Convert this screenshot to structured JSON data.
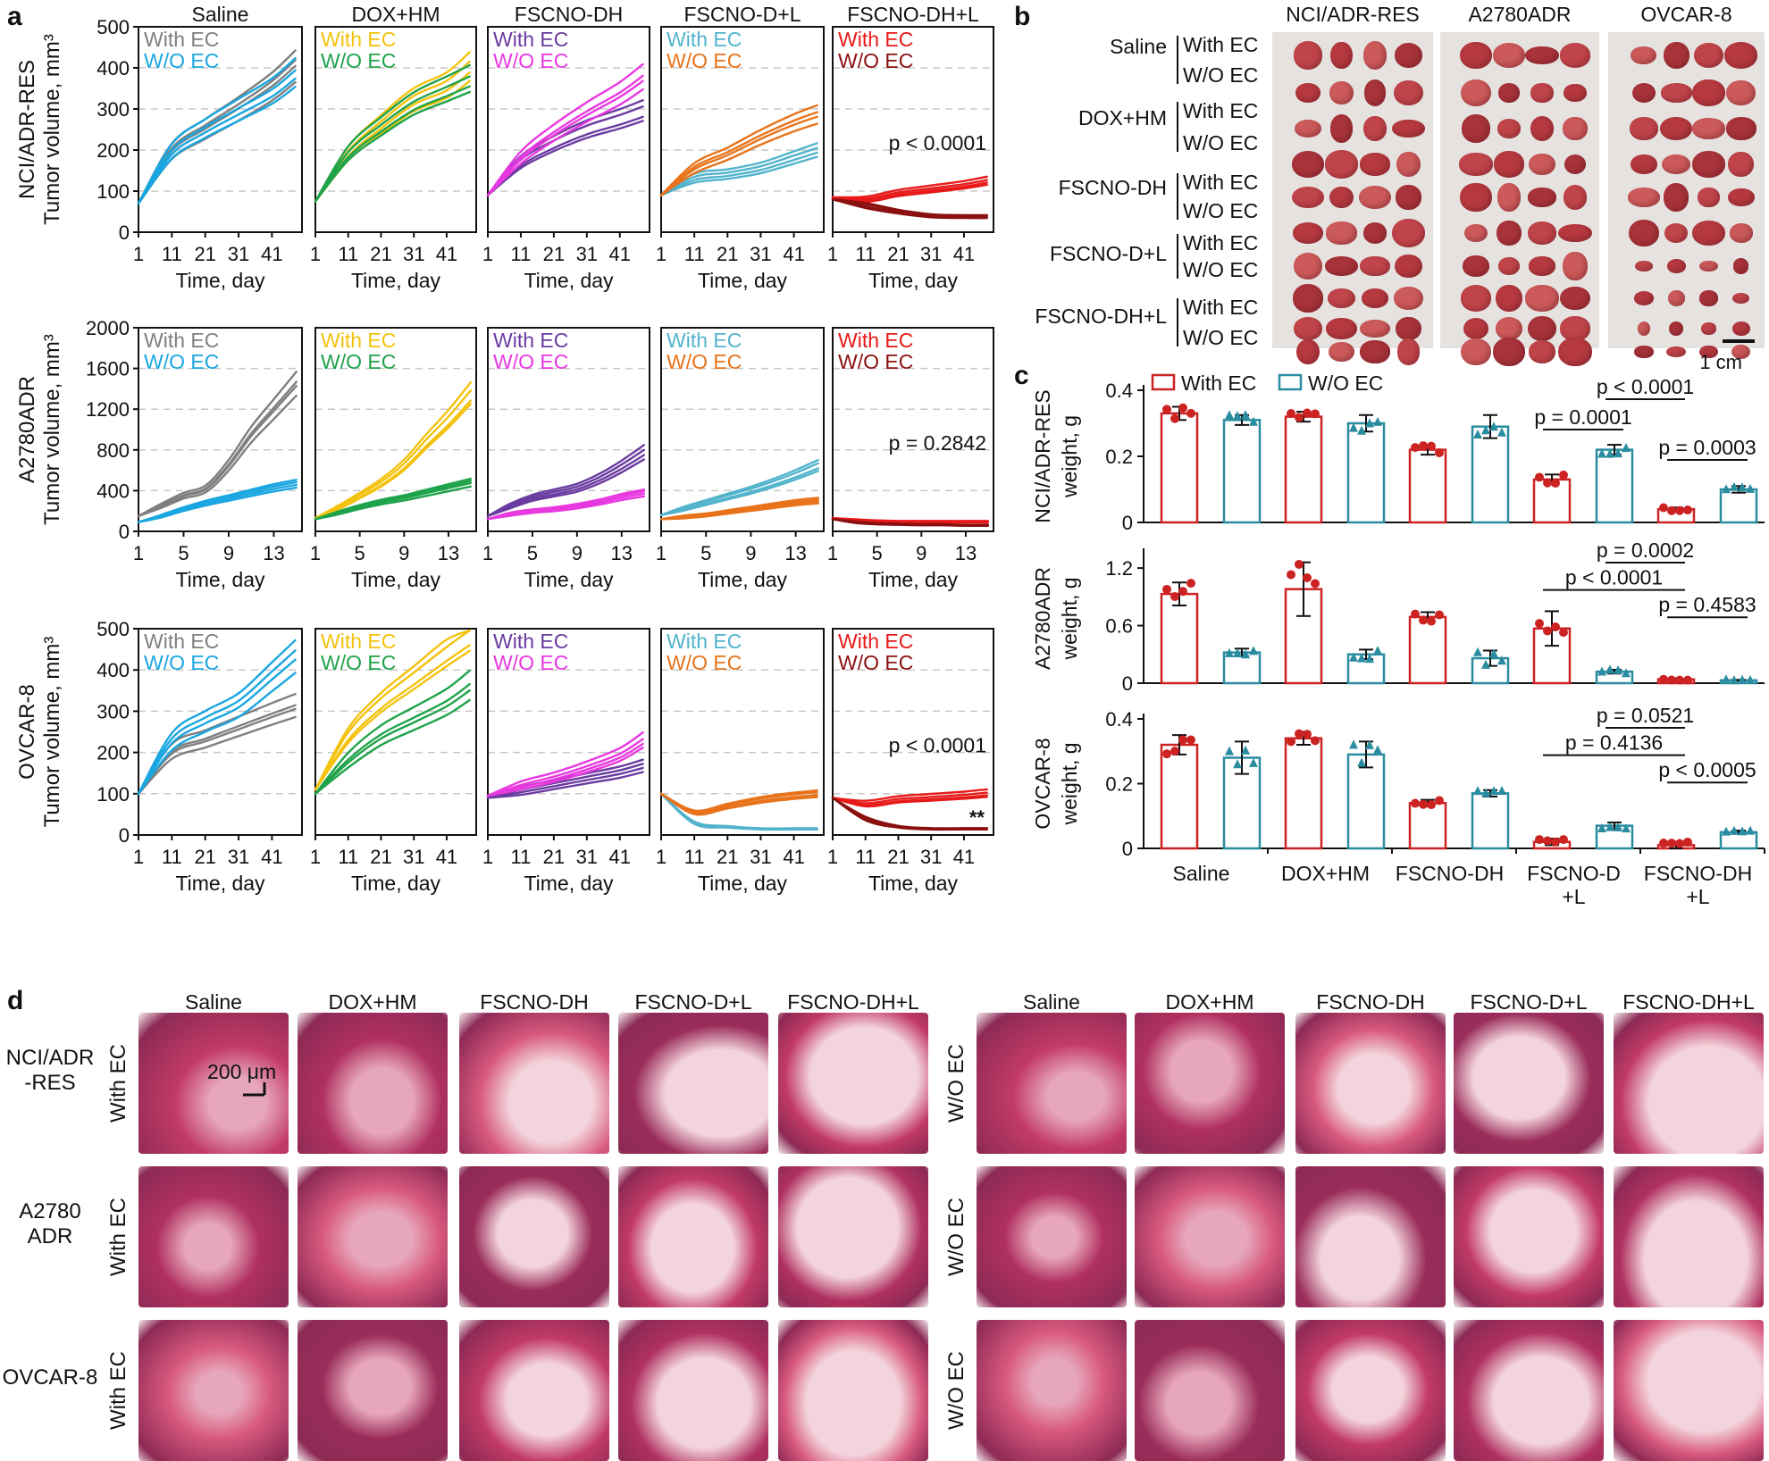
{
  "panel_letters": {
    "a": "a",
    "b": "b",
    "c": "c",
    "d": "d"
  },
  "treatments": [
    "Saline",
    "DOX+HM",
    "FSCNO-DH",
    "FSCNO-D+L",
    "FSCNO-DH+L"
  ],
  "cell_lines": [
    "NCI/ADR-RES",
    "A2780ADR",
    "OVCAR-8"
  ],
  "panel_a": {
    "legend_with": "With EC",
    "legend_without": "W/O EC",
    "xlabel": "Time, day",
    "ylabel_unit": "Tumor volume, mm³",
    "palette": {
      "Saline": {
        "with": "#7f7f7f",
        "without": "#1aa6e0"
      },
      "DOX+HM": {
        "with": "#f4c20d",
        "without": "#1fa34a"
      },
      "FSCNO-DH": {
        "with": "#6a3ba0",
        "without": "#e838e0"
      },
      "FSCNO-D+L": {
        "with": "#52b4cc",
        "without": "#e8731a"
      },
      "FSCNO-DH+L": {
        "with": "#e81919",
        "without": "#8b1010"
      }
    },
    "rows": [
      {
        "cell_line": "NCI/ADR-RES",
        "yticks": [
          0,
          100,
          200,
          300,
          400,
          500
        ],
        "ylim": [
          0,
          500
        ],
        "xticks": [
          1,
          11,
          21,
          31,
          41
        ],
        "xlim": [
          1,
          50
        ],
        "pvalue": "p < 0.0001",
        "annotation": ""
      },
      {
        "cell_line": "A2780ADR",
        "yticks": [
          0,
          400,
          800,
          1200,
          1600,
          2000
        ],
        "ylim": [
          0,
          2000
        ],
        "xticks": [
          1,
          5,
          9,
          13
        ],
        "xlim": [
          1,
          15.5
        ],
        "pvalue": "p = 0.2842",
        "annotation": ""
      },
      {
        "cell_line": "OVCAR-8",
        "yticks": [
          0,
          100,
          200,
          300,
          400,
          500
        ],
        "ylim": [
          0,
          500
        ],
        "xticks": [
          1,
          11,
          21,
          31,
          41
        ],
        "xlim": [
          1,
          50
        ],
        "pvalue": "p < 0.0001",
        "annotation": "**"
      }
    ]
  },
  "chart_data": [
    {
      "type": "line",
      "title": "Tumor volume, NCI/ADR-RES",
      "xlabel": "Time, day",
      "ylabel": "Tumor volume, mm³",
      "ylim": [
        0,
        500
      ],
      "series": [
        {
          "name": "Saline With EC",
          "x": [
            1,
            11,
            21,
            31,
            41,
            48
          ],
          "values": [
            70,
            200,
            255,
            305,
            360,
            410
          ]
        },
        {
          "name": "Saline W/O EC",
          "x": [
            1,
            11,
            21,
            31,
            41,
            48
          ],
          "values": [
            70,
            195,
            250,
            295,
            340,
            385
          ]
        },
        {
          "name": "DOX+HM With EC",
          "x": [
            1,
            11,
            21,
            31,
            41,
            48
          ],
          "values": [
            75,
            190,
            260,
            320,
            355,
            400
          ]
        },
        {
          "name": "DOX+HM W/O EC",
          "x": [
            1,
            11,
            21,
            31,
            41,
            48
          ],
          "values": [
            75,
            190,
            255,
            310,
            345,
            370
          ]
        },
        {
          "name": "FSCNO-DH With EC",
          "x": [
            1,
            11,
            21,
            31,
            41,
            48
          ],
          "values": [
            90,
            170,
            215,
            250,
            275,
            295
          ]
        },
        {
          "name": "FSCNO-DH W/O EC",
          "x": [
            1,
            11,
            21,
            31,
            41,
            48
          ],
          "values": [
            90,
            180,
            240,
            290,
            335,
            375
          ]
        },
        {
          "name": "FSCNO-D+L With EC",
          "x": [
            1,
            11,
            21,
            31,
            41,
            48
          ],
          "values": [
            90,
            130,
            140,
            155,
            180,
            198
          ]
        },
        {
          "name": "FSCNO-D+L W/O EC",
          "x": [
            1,
            11,
            21,
            31,
            41,
            48
          ],
          "values": [
            90,
            155,
            190,
            230,
            265,
            285
          ]
        },
        {
          "name": "FSCNO-DH+L With EC",
          "x": [
            1,
            11,
            21,
            31,
            41,
            48
          ],
          "values": [
            85,
            80,
            95,
            105,
            115,
            125
          ]
        },
        {
          "name": "FSCNO-DH+L W/O EC",
          "x": [
            1,
            11,
            21,
            31,
            41,
            48
          ],
          "values": [
            80,
            65,
            50,
            40,
            38,
            38
          ]
        }
      ]
    },
    {
      "type": "line",
      "title": "Tumor volume, A2780ADR",
      "xlabel": "Time, day",
      "ylabel": "Tumor volume, mm³",
      "ylim": [
        0,
        2000
      ],
      "series": [
        {
          "name": "Saline With EC",
          "x": [
            1,
            3,
            5,
            7,
            9,
            11,
            13,
            15
          ],
          "values": [
            150,
            250,
            350,
            420,
            650,
            950,
            1200,
            1450
          ]
        },
        {
          "name": "Saline W/O EC",
          "x": [
            1,
            3,
            5,
            7,
            9,
            11,
            13,
            15
          ],
          "values": [
            90,
            150,
            220,
            280,
            330,
            380,
            430,
            470
          ]
        },
        {
          "name": "DOX+HM With EC",
          "x": [
            1,
            3,
            5,
            7,
            9,
            11,
            13,
            15
          ],
          "values": [
            130,
            230,
            350,
            480,
            650,
            880,
            1100,
            1350
          ]
        },
        {
          "name": "DOX+HM W/O EC",
          "x": [
            1,
            3,
            5,
            7,
            9,
            11,
            13,
            15
          ],
          "values": [
            120,
            180,
            240,
            290,
            330,
            380,
            430,
            480
          ]
        },
        {
          "name": "FSCNO-DH With EC",
          "x": [
            1,
            3,
            5,
            7,
            9,
            11,
            13,
            15
          ],
          "values": [
            150,
            250,
            330,
            380,
            430,
            520,
            640,
            780
          ]
        },
        {
          "name": "FSCNO-DH W/O EC",
          "x": [
            1,
            3,
            5,
            7,
            9,
            11,
            13,
            15
          ],
          "values": [
            120,
            170,
            200,
            220,
            250,
            290,
            340,
            380
          ]
        },
        {
          "name": "FSCNO-D+L With EC",
          "x": [
            1,
            3,
            5,
            7,
            9,
            11,
            13,
            15
          ],
          "values": [
            160,
            220,
            280,
            340,
            400,
            470,
            550,
            640
          ]
        },
        {
          "name": "FSCNO-D+L W/O EC",
          "x": [
            1,
            3,
            5,
            7,
            9,
            11,
            13,
            15
          ],
          "values": [
            120,
            140,
            160,
            190,
            220,
            250,
            280,
            300
          ]
        },
        {
          "name": "FSCNO-DH+L With EC",
          "x": [
            1,
            3,
            5,
            7,
            9,
            11,
            13,
            15
          ],
          "values": [
            130,
            110,
            100,
            95,
            95,
            95,
            95,
            95
          ]
        },
        {
          "name": "FSCNO-DH+L W/O EC",
          "x": [
            1,
            3,
            5,
            7,
            9,
            11,
            13,
            15
          ],
          "values": [
            120,
            90,
            75,
            70,
            65,
            65,
            60,
            60
          ]
        }
      ]
    },
    {
      "type": "line",
      "title": "Tumor volume, OVCAR-8",
      "xlabel": "Time, day",
      "ylabel": "Tumor volume, mm³",
      "ylim": [
        0,
        500
      ],
      "series": [
        {
          "name": "Saline With EC",
          "x": [
            1,
            11,
            21,
            31,
            41,
            48
          ],
          "values": [
            100,
            200,
            230,
            260,
            290,
            310
          ]
        },
        {
          "name": "Saline W/O EC",
          "x": [
            1,
            11,
            21,
            31,
            41,
            48
          ],
          "values": [
            100,
            230,
            280,
            320,
            390,
            440
          ]
        },
        {
          "name": "DOX+HM With EC",
          "x": [
            1,
            11,
            21,
            31,
            41,
            48
          ],
          "values": [
            110,
            240,
            320,
            380,
            440,
            480
          ]
        },
        {
          "name": "DOX+HM W/O EC",
          "x": [
            1,
            11,
            21,
            31,
            41,
            48
          ],
          "values": [
            100,
            180,
            240,
            280,
            320,
            360
          ]
        },
        {
          "name": "FSCNO-DH With EC",
          "x": [
            1,
            11,
            21,
            31,
            41,
            48
          ],
          "values": [
            90,
            105,
            120,
            135,
            150,
            165
          ]
        },
        {
          "name": "FSCNO-DH W/O EC",
          "x": [
            1,
            11,
            21,
            31,
            41,
            48
          ],
          "values": [
            95,
            120,
            140,
            165,
            195,
            230
          ]
        },
        {
          "name": "FSCNO-D+L With EC",
          "x": [
            1,
            11,
            21,
            31,
            41,
            48
          ],
          "values": [
            100,
            30,
            20,
            15,
            15,
            15
          ]
        },
        {
          "name": "FSCNO-D+L W/O EC",
          "x": [
            1,
            11,
            21,
            31,
            41,
            48
          ],
          "values": [
            100,
            55,
            70,
            85,
            95,
            100
          ]
        },
        {
          "name": "FSCNO-DH+L With EC",
          "x": [
            1,
            11,
            21,
            31,
            41,
            48
          ],
          "values": [
            90,
            75,
            85,
            90,
            95,
            100
          ]
        },
        {
          "name": "FSCNO-DH+L W/O EC",
          "x": [
            1,
            11,
            21,
            31,
            41,
            48
          ],
          "values": [
            90,
            40,
            20,
            15,
            15,
            15
          ]
        }
      ]
    },
    {
      "type": "bar",
      "title": "NCI/ADR-RES weight, g",
      "categories": [
        "Saline",
        "DOX+HM",
        "FSCNO-DH",
        "FSCNO-D\n+L",
        "FSCNO-DH\n+L"
      ],
      "ylabel": "NCI/ADR-RES weight, g",
      "ylim": [
        0,
        0.4
      ],
      "yticks": [
        0,
        0.2,
        0.4
      ],
      "ytick_labels": [
        "0",
        "0.2",
        "0.4"
      ],
      "series": [
        {
          "name": "With EC",
          "values": [
            0.33,
            0.32,
            0.22,
            0.13,
            0.04
          ],
          "sd": [
            0.02,
            0.015,
            0.015,
            0.015,
            0.005
          ]
        },
        {
          "name": "W/O EC",
          "values": [
            0.31,
            0.3,
            0.29,
            0.22,
            0.1
          ],
          "sd": [
            0.015,
            0.025,
            0.035,
            0.015,
            0.01
          ]
        }
      ],
      "brackets": [
        {
          "from": [
            3,
            0
          ],
          "to": [
            3,
            1
          ],
          "label": "p = 0.0001"
        },
        {
          "from": [
            3,
            1
          ],
          "to": [
            4,
            0
          ],
          "label": "p < 0.0001"
        },
        {
          "from": [
            4,
            0
          ],
          "to": [
            4,
            1
          ],
          "label": "p = 0.0003"
        }
      ]
    },
    {
      "type": "bar",
      "title": "A2780ADR weight, g",
      "categories": [
        "Saline",
        "DOX+HM",
        "FSCNO-DH",
        "FSCNO-D\n+L",
        "FSCNO-DH\n+L"
      ],
      "ylabel": "A2780ADR weight, g",
      "ylim": [
        0,
        1.35
      ],
      "yticks": [
        0,
        0.6,
        1.2
      ],
      "ytick_labels": [
        "0",
        "0.6",
        "1.2"
      ],
      "series": [
        {
          "name": "With EC",
          "values": [
            0.93,
            0.98,
            0.69,
            0.57,
            0.04
          ],
          "sd": [
            0.12,
            0.28,
            0.05,
            0.18,
            0.01
          ]
        },
        {
          "name": "W/O EC",
          "values": [
            0.32,
            0.3,
            0.26,
            0.12,
            0.03
          ],
          "sd": [
            0.04,
            0.05,
            0.08,
            0.02,
            0.005
          ]
        }
      ],
      "brackets": [
        {
          "from": [
            3,
            0
          ],
          "to": [
            4,
            0
          ],
          "label": "p < 0.0001"
        },
        {
          "from": [
            3,
            1
          ],
          "to": [
            4,
            0
          ],
          "label": "p = 0.0002"
        },
        {
          "from": [
            4,
            0
          ],
          "to": [
            4,
            1
          ],
          "label": "p = 0.4583"
        }
      ]
    },
    {
      "type": "bar",
      "title": "OVCAR-8 weight, g",
      "categories": [
        "Saline",
        "DOX+HM",
        "FSCNO-DH",
        "FSCNO-D\n+L",
        "FSCNO-DH\n+L"
      ],
      "ylabel": "OVCAR-8 weight, g",
      "ylim": [
        0,
        0.4
      ],
      "yticks": [
        0,
        0.2,
        0.4
      ],
      "ytick_labels": [
        "0",
        "0.2",
        "0.4"
      ],
      "series": [
        {
          "name": "With EC",
          "values": [
            0.32,
            0.34,
            0.14,
            0.02,
            0.01
          ],
          "sd": [
            0.03,
            0.02,
            0.01,
            0.01,
            0.01
          ]
        },
        {
          "name": "W/O EC",
          "values": [
            0.28,
            0.29,
            0.17,
            0.07,
            0.05
          ],
          "sd": [
            0.05,
            0.04,
            0.01,
            0.01,
            0.005
          ]
        }
      ],
      "brackets": [
        {
          "from": [
            3,
            0
          ],
          "to": [
            4,
            0
          ],
          "label": "p = 0.4136"
        },
        {
          "from": [
            3,
            1
          ],
          "to": [
            4,
            0
          ],
          "label": "p = 0.0521"
        },
        {
          "from": [
            4,
            0
          ],
          "to": [
            4,
            1
          ],
          "label": "p < 0.0005"
        }
      ]
    }
  ],
  "panel_b": {
    "row_labels": [
      "With EC",
      "W/O EC"
    ],
    "column_titles": [
      "NCI/ADR-RES",
      "A2780ADR",
      "OVCAR-8"
    ],
    "scale_bar": "1 cm",
    "photo_color": "#e6e2df",
    "tumor_colors": [
      "#c0454a",
      "#b5393f",
      "#cc5a5a",
      "#a8333a"
    ]
  },
  "panel_c": {
    "legend_with": "With EC",
    "legend_without": "W/O EC",
    "with_color": "#cc2222",
    "without_color": "#2a8ca0",
    "xtick_labels": [
      [
        "Saline"
      ],
      [
        "DOX+HM"
      ],
      [
        "FSCNO-DH"
      ],
      [
        "FSCNO-D",
        "+L"
      ],
      [
        "FSCNO-DH",
        "+L"
      ]
    ]
  },
  "panel_d": {
    "row_labels": [
      "NCI/ADR\n-RES",
      "A2780\nADR",
      "OVCAR-8"
    ],
    "left_group": "With EC",
    "right_group": "W/O EC",
    "scale_bar": "200 μm",
    "stain_colors": [
      "#c23a66",
      "#b03060",
      "#d8587e",
      "#9a2c5a"
    ]
  }
}
